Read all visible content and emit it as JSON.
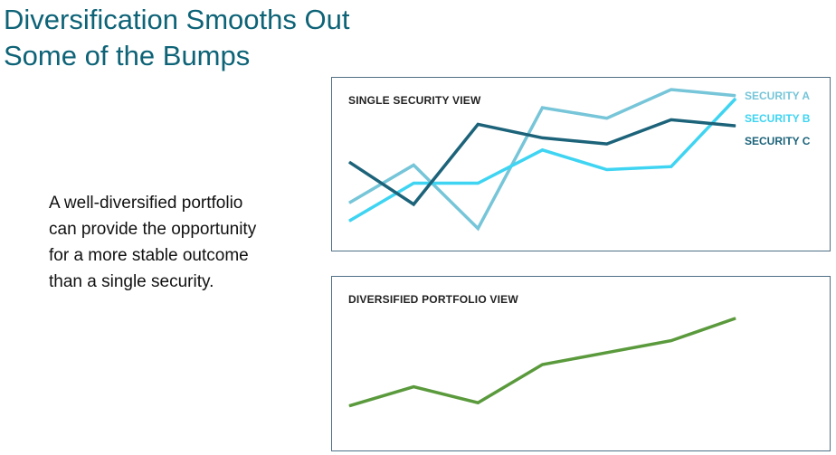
{
  "header": {
    "title_line1": "Diversification Smooths Out",
    "title_line2": "Some of the Bumps"
  },
  "body": {
    "line1": "A well-diversified portfolio",
    "line2": "can provide the opportunity",
    "line3": "for a more stable outcome",
    "line4": "than a single security."
  },
  "chart_data": [
    {
      "type": "line",
      "title": "SINGLE SECURITY VIEW",
      "x": [
        1,
        2,
        3,
        4,
        5,
        6,
        7
      ],
      "ylim": [
        0,
        100
      ],
      "grid": false,
      "legend": "right",
      "series": [
        {
          "name": "SECURITY A",
          "color": "#76c5d8",
          "values": [
            25,
            50,
            8,
            88,
            81,
            100,
            96
          ]
        },
        {
          "name": "SECURITY B",
          "color": "#3ed4f2",
          "values": [
            13,
            38,
            38,
            60,
            47,
            49,
            94
          ]
        },
        {
          "name": "SECURITY C",
          "color": "#1c637a",
          "values": [
            52,
            24,
            77,
            68,
            64,
            80,
            76
          ]
        }
      ]
    },
    {
      "type": "line",
      "title": "DIVERSIFIED PORTFOLIO VIEW",
      "x": [
        1,
        2,
        3,
        4,
        5,
        6,
        7
      ],
      "ylim": [
        0,
        100
      ],
      "grid": false,
      "series": [
        {
          "name": "",
          "color": "#5a9a3c",
          "values": [
            6,
            30,
            10,
            58,
            73,
            88,
            116
          ]
        }
      ]
    }
  ]
}
